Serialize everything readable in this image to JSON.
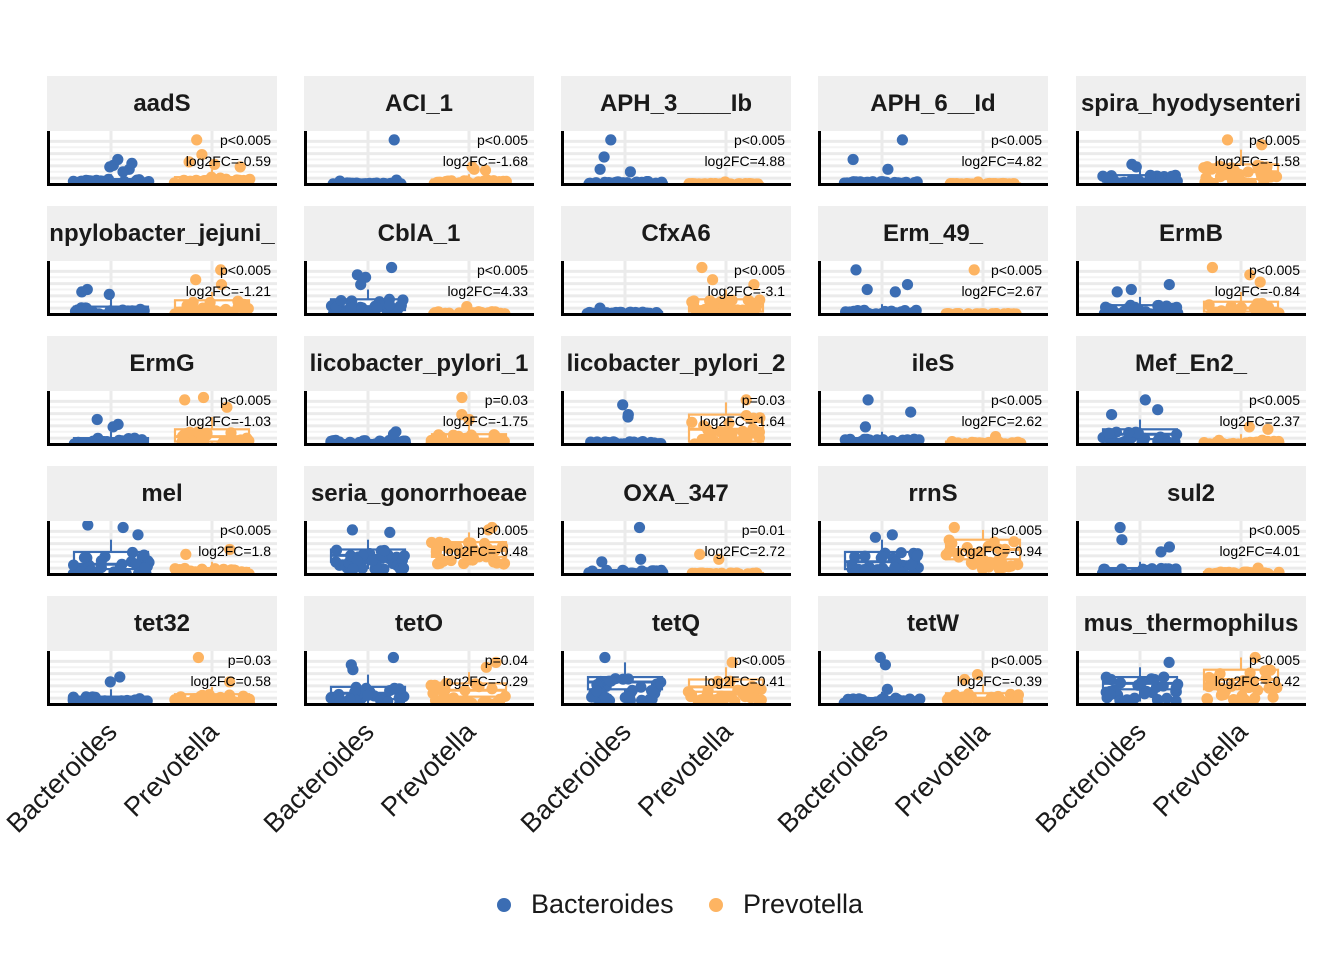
{
  "chart_data": {
    "type": "scatter",
    "layout": "faceted boxplot with jittered points, 5x5 grid, free y scales",
    "categories": [
      "Bacteroides",
      "Prevotella"
    ],
    "colors": {
      "Bacteroides": "#3B6DB3",
      "Prevotella": "#FDB462"
    },
    "legend": {
      "position": "bottom",
      "items": [
        "Bacteroides",
        "Prevotella"
      ]
    },
    "grid": true,
    "facets": [
      {
        "title": "aadS",
        "pval": "p<0.005",
        "fc": "log2FC=-0.59",
        "series": [
          {
            "name": "Bacteroides",
            "box": [
              0.0,
              0.02,
              0.05,
              0.1,
              0.2
            ],
            "outliers": [
              0.3,
              0.35,
              0.38,
              0.42,
              0.5,
              0.25
            ]
          },
          {
            "name": "Prevotella",
            "box": [
              0.0,
              0.03,
              0.08,
              0.14,
              0.3
            ],
            "outliers": [
              0.9,
              0.6,
              0.45,
              0.4,
              0.35
            ]
          }
        ]
      },
      {
        "title": "ACI_1",
        "pval": "p<0.005",
        "fc": "log2FC=-1.68",
        "series": [
          {
            "name": "Bacteroides",
            "box": [
              0.0,
              0.0,
              0.01,
              0.02,
              0.05
            ],
            "outliers": [
              0.9,
              0.08,
              0.06
            ]
          },
          {
            "name": "Prevotella",
            "box": [
              0.0,
              0.02,
              0.05,
              0.09,
              0.2
            ],
            "outliers": [
              0.3,
              0.35,
              0.28
            ]
          }
        ]
      },
      {
        "title": "APH_3____Ib",
        "pval": "p<0.005",
        "fc": "log2FC=4.88",
        "series": [
          {
            "name": "Bacteroides",
            "box": [
              0.0,
              0.0,
              0.02,
              0.05,
              0.12
            ],
            "outliers": [
              0.9,
              0.55,
              0.3,
              0.25
            ]
          },
          {
            "name": "Prevotella",
            "box": [
              0.0,
              0.0,
              0.0,
              0.01,
              0.02
            ],
            "outliers": [
              0.04
            ]
          }
        ]
      },
      {
        "title": "APH_6__Id",
        "pval": "p<0.005",
        "fc": "log2FC=4.82",
        "series": [
          {
            "name": "Bacteroides",
            "box": [
              0.0,
              0.0,
              0.02,
              0.05,
              0.12
            ],
            "outliers": [
              0.9,
              0.5,
              0.3
            ]
          },
          {
            "name": "Prevotella",
            "box": [
              0.0,
              0.0,
              0.0,
              0.01,
              0.02
            ],
            "outliers": [
              0.04
            ]
          }
        ]
      },
      {
        "title": "spira_hyodysenteri",
        "pval": "p<0.005",
        "fc": "log2FC=-1.58",
        "series": [
          {
            "name": "Bacteroides",
            "box": [
              0.0,
              0.05,
              0.1,
              0.18,
              0.3
            ],
            "outliers": [
              0.35,
              0.4
            ]
          },
          {
            "name": "Prevotella",
            "box": [
              0.0,
              0.1,
              0.25,
              0.4,
              0.7
            ],
            "outliers": [
              0.9,
              0.8
            ]
          }
        ]
      },
      {
        "title": "npylobacter_jejuni_",
        "pval": "p<0.005",
        "fc": "log2FC=-1.21",
        "series": [
          {
            "name": "Bacteroides",
            "box": [
              0.0,
              0.02,
              0.06,
              0.15,
              0.3
            ],
            "outliers": [
              0.45,
              0.5,
              0.4
            ]
          },
          {
            "name": "Prevotella",
            "box": [
              0.0,
              0.05,
              0.12,
              0.28,
              0.45
            ],
            "outliers": [
              0.9,
              0.7,
              0.6
            ]
          }
        ]
      },
      {
        "title": "CblA_1",
        "pval": "p<0.005",
        "fc": "log2FC=4.33",
        "series": [
          {
            "name": "Bacteroides",
            "box": [
              0.0,
              0.08,
              0.15,
              0.3,
              0.5
            ],
            "outliers": [
              0.95,
              0.8,
              0.75,
              0.6
            ]
          },
          {
            "name": "Prevotella",
            "box": [
              0.0,
              0.0,
              0.02,
              0.05,
              0.1
            ],
            "outliers": [
              0.15
            ]
          }
        ]
      },
      {
        "title": "CfxA6",
        "pval": "p<0.005",
        "fc": "log2FC=-3.1",
        "series": [
          {
            "name": "Bacteroides",
            "box": [
              0.0,
              0.0,
              0.02,
              0.04,
              0.1
            ],
            "outliers": [
              0.12
            ]
          },
          {
            "name": "Prevotella",
            "box": [
              0.0,
              0.05,
              0.15,
              0.3,
              0.5
            ],
            "outliers": [
              0.95,
              0.7,
              0.6
            ]
          }
        ]
      },
      {
        "title": "Erm_49_",
        "pval": "p<0.005",
        "fc": "log2FC=2.67",
        "series": [
          {
            "name": "Bacteroides",
            "box": [
              0.0,
              0.0,
              0.03,
              0.08,
              0.2
            ],
            "outliers": [
              0.9,
              0.6,
              0.5,
              0.45
            ]
          },
          {
            "name": "Prevotella",
            "box": [
              0.0,
              0.0,
              0.0,
              0.01,
              0.02
            ],
            "outliers": [
              0.9
            ]
          }
        ]
      },
      {
        "title": "ErmB",
        "pval": "p<0.005",
        "fc": "log2FC=-0.84",
        "series": [
          {
            "name": "Bacteroides",
            "box": [
              0.0,
              0.03,
              0.08,
              0.18,
              0.35
            ],
            "outliers": [
              0.6,
              0.5,
              0.45
            ]
          },
          {
            "name": "Prevotella",
            "box": [
              0.0,
              0.05,
              0.12,
              0.25,
              0.45
            ],
            "outliers": [
              0.95,
              0.8,
              0.65
            ]
          }
        ]
      },
      {
        "title": "ErmG",
        "pval": "p<0.005",
        "fc": "log2FC=-1.03",
        "series": [
          {
            "name": "Bacteroides",
            "box": [
              0.0,
              0.02,
              0.06,
              0.12,
              0.25
            ],
            "outliers": [
              0.5,
              0.4,
              0.35
            ]
          },
          {
            "name": "Prevotella",
            "box": [
              0.0,
              0.05,
              0.15,
              0.3,
              0.55
            ],
            "outliers": [
              0.95,
              0.9,
              0.75
            ]
          }
        ]
      },
      {
        "title": "licobacter_pylori_1",
        "pval": "p=0.03",
        "fc": "log2FC=-1.75",
        "series": [
          {
            "name": "Bacteroides",
            "box": [
              0.0,
              0.0,
              0.03,
              0.08,
              0.15
            ],
            "outliers": [
              0.25,
              0.2
            ]
          },
          {
            "name": "Prevotella",
            "box": [
              0.0,
              0.02,
              0.1,
              0.2,
              0.4
            ],
            "outliers": [
              0.95,
              0.6,
              0.5
            ]
          }
        ]
      },
      {
        "title": "licobacter_pylori_2",
        "pval": "p=0.03",
        "fc": "log2FC=-1.64",
        "series": [
          {
            "name": "Bacteroides",
            "box": [
              0.0,
              0.0,
              0.02,
              0.05,
              0.1
            ],
            "outliers": [
              0.8,
              0.6,
              0.55
            ]
          },
          {
            "name": "Prevotella",
            "box": [
              0.0,
              0.05,
              0.3,
              0.6,
              0.85
            ],
            "outliers": [
              0.9
            ]
          }
        ]
      },
      {
        "title": "ileS",
        "pval": "p<0.005",
        "fc": "log2FC=2.62",
        "series": [
          {
            "name": "Bacteroides",
            "box": [
              0.0,
              0.02,
              0.06,
              0.12,
              0.25
            ],
            "outliers": [
              0.9,
              0.65,
              0.35
            ]
          },
          {
            "name": "Prevotella",
            "box": [
              0.0,
              0.0,
              0.02,
              0.05,
              0.1
            ],
            "outliers": [
              0.15
            ]
          }
        ]
      },
      {
        "title": "Mef_En2_",
        "pval": "p<0.005",
        "fc": "log2FC=2.37",
        "series": [
          {
            "name": "Bacteroides",
            "box": [
              0.0,
              0.1,
              0.2,
              0.3,
              0.5
            ],
            "outliers": [
              0.9,
              0.7,
              0.6
            ]
          },
          {
            "name": "Prevotella",
            "box": [
              0.0,
              0.0,
              0.03,
              0.08,
              0.2
            ],
            "outliers": [
              0.35,
              0.3
            ]
          }
        ]
      },
      {
        "title": "mel",
        "pval": "p<0.005",
        "fc": "log2FC=1.8",
        "series": [
          {
            "name": "Bacteroides",
            "box": [
              0.0,
              0.1,
              0.2,
              0.45,
              0.7
            ],
            "outliers": [
              1.0,
              0.95,
              0.8
            ]
          },
          {
            "name": "Prevotella",
            "box": [
              0.0,
              0.02,
              0.05,
              0.12,
              0.25
            ],
            "outliers": [
              0.5,
              0.4
            ]
          }
        ]
      },
      {
        "title": "seria_gonorrhoeae",
        "pval": "p<0.005",
        "fc": "log2FC=-0.48",
        "series": [
          {
            "name": "Bacteroides",
            "box": [
              0.1,
              0.25,
              0.38,
              0.5,
              0.7
            ],
            "outliers": [
              0.9,
              0.85
            ]
          },
          {
            "name": "Prevotella",
            "box": [
              0.2,
              0.35,
              0.5,
              0.65,
              0.85
            ],
            "outliers": [
              0.95,
              0.9
            ]
          }
        ]
      },
      {
        "title": "OXA_347",
        "pval": "p=0.01",
        "fc": "log2FC=2.72",
        "series": [
          {
            "name": "Bacteroides",
            "box": [
              0.0,
              0.0,
              0.03,
              0.08,
              0.15
            ],
            "outliers": [
              0.95,
              0.3,
              0.25
            ]
          },
          {
            "name": "Prevotella",
            "box": [
              0.0,
              0.0,
              0.01,
              0.02,
              0.05
            ],
            "outliers": [
              0.4,
              0.3
            ]
          }
        ]
      },
      {
        "title": "rrnS",
        "pval": "p<0.005",
        "fc": "log2FC=-0.94",
        "series": [
          {
            "name": "Bacteroides",
            "box": [
              0.0,
              0.1,
              0.25,
              0.45,
              0.7
            ],
            "outliers": [
              0.8,
              0.75
            ]
          },
          {
            "name": "Prevotella",
            "box": [
              0.1,
              0.3,
              0.5,
              0.7,
              0.9
            ],
            "outliers": [
              0.95
            ]
          }
        ]
      },
      {
        "title": "sul2",
        "pval": "p<0.005",
        "fc": "log2FC=4.01",
        "series": [
          {
            "name": "Bacteroides",
            "box": [
              0.0,
              0.02,
              0.06,
              0.12,
              0.25
            ],
            "outliers": [
              0.95,
              0.7,
              0.55,
              0.45
            ]
          },
          {
            "name": "Prevotella",
            "box": [
              0.0,
              0.0,
              0.02,
              0.04,
              0.08
            ],
            "outliers": [
              0.12
            ]
          }
        ]
      },
      {
        "title": "tet32",
        "pval": "p=0.03",
        "fc": "log2FC=0.58",
        "series": [
          {
            "name": "Bacteroides",
            "box": [
              0.0,
              0.03,
              0.08,
              0.15,
              0.3
            ],
            "outliers": [
              0.55,
              0.45
            ]
          },
          {
            "name": "Prevotella",
            "box": [
              0.0,
              0.05,
              0.1,
              0.2,
              0.35
            ],
            "outliers": [
              0.95,
              0.45
            ]
          }
        ]
      },
      {
        "title": "tetO",
        "pval": "p=0.04",
        "fc": "log2FC=-0.29",
        "series": [
          {
            "name": "Bacteroides",
            "box": [
              0.0,
              0.1,
              0.22,
              0.35,
              0.6
            ],
            "outliers": [
              0.95,
              0.8,
              0.7
            ]
          },
          {
            "name": "Prevotella",
            "box": [
              0.0,
              0.15,
              0.28,
              0.42,
              0.65
            ],
            "outliers": [
              0.85,
              0.75
            ]
          }
        ]
      },
      {
        "title": "tetQ",
        "pval": "p<0.005",
        "fc": "log2FC=0.41",
        "series": [
          {
            "name": "Bacteroides",
            "box": [
              0.05,
              0.3,
              0.45,
              0.55,
              0.85
            ],
            "outliers": [
              0.95
            ]
          },
          {
            "name": "Prevotella",
            "box": [
              0.05,
              0.25,
              0.35,
              0.5,
              0.75
            ],
            "outliers": [
              0.85
            ]
          }
        ]
      },
      {
        "title": "tetW",
        "pval": "p<0.005",
        "fc": "log2FC=-0.39",
        "series": [
          {
            "name": "Bacteroides",
            "box": [
              0.0,
              0.02,
              0.06,
              0.12,
              0.25
            ],
            "outliers": [
              0.95,
              0.8,
              0.3
            ]
          },
          {
            "name": "Prevotella",
            "box": [
              0.0,
              0.05,
              0.12,
              0.22,
              0.4
            ],
            "outliers": [
              0.6,
              0.5
            ]
          }
        ]
      },
      {
        "title": "mus_thermophilus",
        "pval": "p<0.005",
        "fc": "log2FC=-0.42",
        "series": [
          {
            "name": "Bacteroides",
            "box": [
              0.05,
              0.3,
              0.42,
              0.55,
              0.75
            ],
            "outliers": [
              0.85
            ]
          },
          {
            "name": "Prevotella",
            "box": [
              0.05,
              0.3,
              0.5,
              0.7,
              0.95
            ],
            "outliers": [
              0.95
            ]
          }
        ]
      }
    ]
  }
}
